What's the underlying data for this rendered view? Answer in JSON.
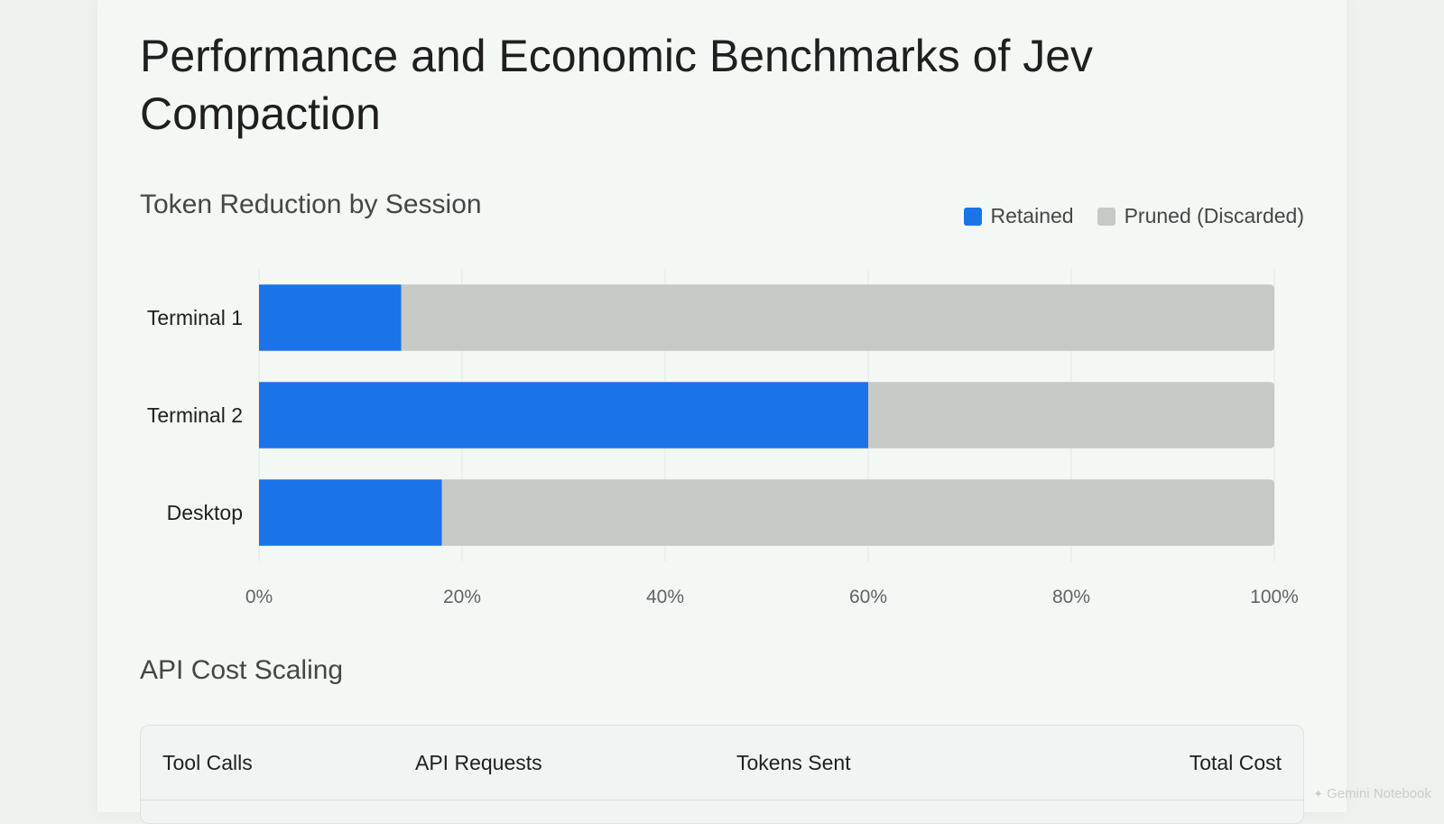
{
  "page": {
    "title": "Performance and Economic Benchmarks of Jev Compaction"
  },
  "chart_section": {
    "title": "Token Reduction by Session"
  },
  "chart_data": {
    "type": "bar",
    "orientation": "horizontal",
    "stacked": true,
    "title": "Token Reduction by Session",
    "categories": [
      "Terminal 1",
      "Terminal 2",
      "Desktop"
    ],
    "series": [
      {
        "name": "Retained",
        "color": "#1a73e8",
        "values": [
          14,
          60,
          18
        ]
      },
      {
        "name": "Pruned (Discarded)",
        "color": "#c7c9c5",
        "values": [
          86,
          40,
          82
        ]
      }
    ],
    "xlim": [
      0,
      100
    ],
    "x_ticks": [
      "0%",
      "20%",
      "40%",
      "60%",
      "80%",
      "100%"
    ],
    "legend_position": "top-right",
    "grid": true
  },
  "table_section": {
    "title": "API Cost Scaling",
    "columns": [
      "Tool Calls",
      "API Requests",
      "Tokens Sent",
      "Total Cost"
    ]
  },
  "watermark": {
    "text": "Gemini Notebook",
    "icon": "gemini-icon"
  }
}
